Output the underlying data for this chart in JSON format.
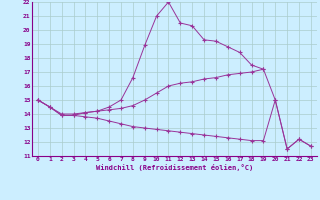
{
  "xlabel": "Windchill (Refroidissement éolien,°C)",
  "background_color": "#cceeff",
  "grid_color": "#aacccc",
  "line_color": "#993399",
  "xlim": [
    -0.5,
    23.5
  ],
  "ylim": [
    11,
    22
  ],
  "yticks": [
    11,
    12,
    13,
    14,
    15,
    16,
    17,
    18,
    19,
    20,
    21,
    22
  ],
  "xticks": [
    0,
    1,
    2,
    3,
    4,
    5,
    6,
    7,
    8,
    9,
    10,
    11,
    12,
    13,
    14,
    15,
    16,
    17,
    18,
    19,
    20,
    21,
    22,
    23
  ],
  "line1_x": [
    0,
    1,
    2,
    3,
    4,
    5,
    6,
    7,
    8,
    9,
    10,
    11,
    12,
    13,
    14,
    15,
    16,
    17,
    18,
    19
  ],
  "line1_y": [
    15.0,
    14.5,
    13.9,
    13.9,
    14.1,
    14.2,
    14.5,
    15.0,
    16.6,
    18.9,
    21.0,
    22.0,
    20.5,
    20.3,
    19.3,
    19.2,
    18.8,
    18.4,
    17.5,
    17.2
  ],
  "line2_x": [
    0,
    1,
    2,
    3,
    4,
    5,
    6,
    7,
    8,
    9,
    10,
    11,
    12,
    13,
    14,
    15,
    16,
    17,
    18,
    19,
    20,
    21,
    22,
    23
  ],
  "line2_y": [
    15.0,
    14.5,
    14.0,
    14.0,
    14.1,
    14.2,
    14.3,
    14.4,
    14.6,
    15.0,
    15.5,
    16.0,
    16.2,
    16.3,
    16.5,
    16.6,
    16.8,
    16.9,
    17.0,
    17.2,
    15.0,
    11.5,
    12.2,
    11.7
  ],
  "line3_x": [
    0,
    1,
    2,
    3,
    4,
    5,
    6,
    7,
    8,
    9,
    10,
    11,
    12,
    13,
    14,
    15,
    16,
    17,
    18,
    19,
    20,
    21,
    22,
    23
  ],
  "line3_y": [
    15.0,
    14.5,
    13.9,
    13.9,
    13.8,
    13.7,
    13.5,
    13.3,
    13.1,
    13.0,
    12.9,
    12.8,
    12.7,
    12.6,
    12.5,
    12.4,
    12.3,
    12.2,
    12.1,
    12.1,
    15.0,
    11.5,
    12.2,
    11.7
  ]
}
